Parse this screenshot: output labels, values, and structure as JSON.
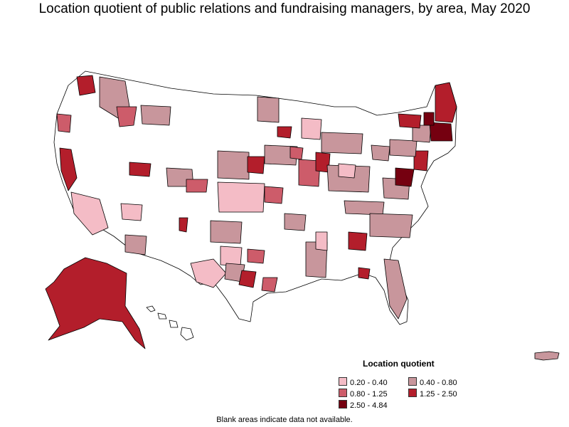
{
  "title": "Location quotient of public relations and fundraising managers, by area, May 2020",
  "legend": {
    "title": "Location quotient",
    "items": [
      {
        "label": "0.20 - 0.40",
        "color": "#f4bcc6"
      },
      {
        "label": "0.40 - 0.80",
        "color": "#c8969c"
      },
      {
        "label": "0.80 - 1.25",
        "color": "#cd5c6a"
      },
      {
        "label": "1.25 - 2.50",
        "color": "#b31e2b"
      },
      {
        "label": "2.50 - 4.84",
        "color": "#750010"
      }
    ]
  },
  "footnote": "Blank areas indicate data not available.",
  "colors": {
    "blank": "#ffffff",
    "border": "#000000"
  }
}
